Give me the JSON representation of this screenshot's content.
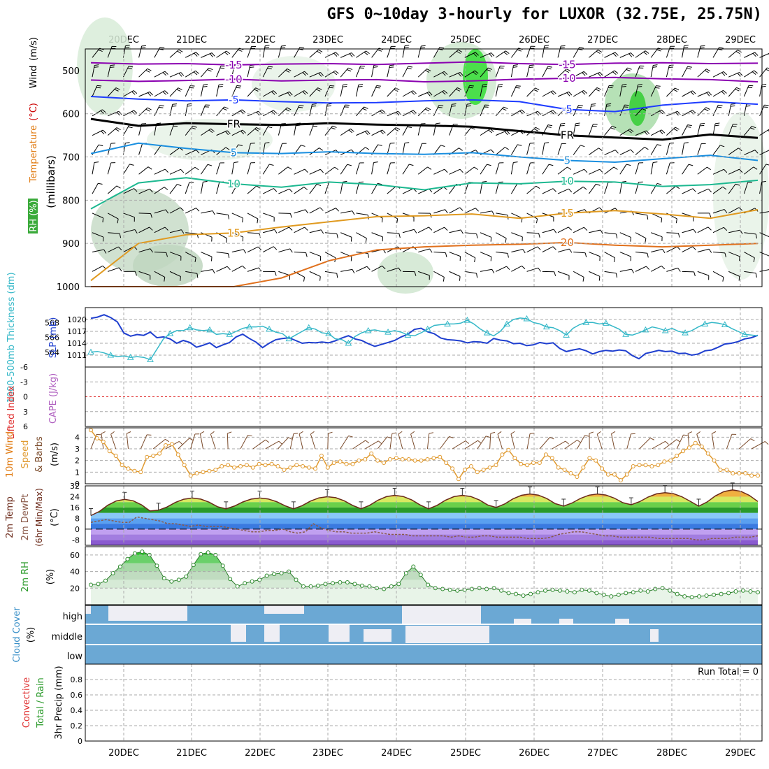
{
  "title": "GFS 0~10day 3-hourly for LUXOR (32.75E, 25.75N)",
  "chart_data": {
    "type": "meteogram",
    "days": [
      "20DEC",
      "21DEC",
      "22DEC",
      "23DEC",
      "24DEC",
      "25DEC",
      "26DEC",
      "27DEC",
      "28DEC",
      "29DEC"
    ],
    "panels": {
      "upper_air": {
        "ylabel_parts": [
          "RH (%)",
          "Temperature",
          "(°C)",
          "Wind",
          "(m/s)",
          "(millibars)"
        ],
        "yticks": [
          500,
          600,
          700,
          800,
          900,
          1000
        ],
        "ylim": [
          450,
          1000
        ],
        "contours": [
          {
            "label": "-15",
            "color": "#8a00b0",
            "p": [
              482,
              485,
              484,
              487,
              485,
              484,
              486,
              483,
              480,
              484,
              486,
              483,
              482,
              484,
              483
            ]
          },
          {
            "label": "-10",
            "color": "#8a00b0",
            "p": [
              522,
              525,
              523,
              520,
              524,
              522,
              521,
              526,
              524,
              520,
              518,
              516,
              519,
              521,
              526
            ]
          },
          {
            "label": "-5",
            "color": "#1e3cff",
            "p": [
              560,
              566,
              570,
              568,
              572,
              575,
              574,
              570,
              568,
              572,
              590,
              595,
              580,
              572,
              578
            ]
          },
          {
            "label": "FR",
            "color": "#000000",
            "p": [
              612,
              628,
              622,
              624,
              626,
              622,
              625,
              627,
              630,
              640,
              650,
              655,
              660,
              648,
              656
            ]
          },
          {
            "label": "5",
            "color": "#1a8fe0",
            "p": [
              692,
              668,
              680,
              690,
              692,
              688,
              692,
              694,
              690,
              700,
              708,
              712,
              704,
              696,
              708
            ]
          },
          {
            "label": "10",
            "color": "#1cb890",
            "p": [
              820,
              760,
              748,
              762,
              770,
              758,
              764,
              776,
              760,
              762,
              756,
              758,
              768,
              764,
              754
            ]
          },
          {
            "label": "15",
            "color": "#e09a20",
            "p": [
              986,
              900,
              880,
              876,
              862,
              850,
              838,
              836,
              832,
              842,
              830,
              824,
              832,
              842,
              822
            ]
          },
          {
            "label": "20",
            "color": "#e0701c",
            "p": [
              1000,
              1000,
              1000,
              1000,
              980,
              940,
              915,
              908,
              904,
              902,
              898,
              904,
              908,
              904,
              900
            ]
          }
        ]
      },
      "slp_thickness": {
        "slp_label": "SLP (mb)",
        "thickness_label": "1000-500mb Thickness (dm)",
        "slp_ticks": [
          "1020",
          "1017",
          "1014",
          "1011"
        ],
        "thickness_ticks": [
          "568",
          "566",
          "564"
        ],
        "slp": [
          1020.3,
          1020.6,
          1021.2,
          1020.5,
          1019.4,
          1016.6,
          1015.8,
          1016.2,
          1016.0,
          1016.8,
          1015.4,
          1015.6,
          1015.1,
          1014.0,
          1014.7,
          1014.2,
          1013.0,
          1013.5,
          1014.1,
          1012.9,
          1013.6,
          1014.2,
          1015.6,
          1016.3,
          1015.2,
          1014.3,
          1012.9,
          1014.0,
          1014.9,
          1015.2,
          1015.4,
          1014.7,
          1014.0,
          1014.2,
          1014.1,
          1014.3,
          1014.1,
          1014.6,
          1015.3,
          1015.9,
          1015.1,
          1014.7,
          1013.9,
          1013.2,
          1013.7,
          1014.2,
          1014.7,
          1015.6,
          1016.3,
          1017.5,
          1017.8,
          1016.9,
          1016.4,
          1015.3,
          1014.9,
          1014.8,
          1014.6,
          1014.1,
          1014.4,
          1014.3,
          1014.0,
          1015.2,
          1014.8,
          1014.6,
          1013.9,
          1014.0,
          1013.4,
          1013.6,
          1014.2,
          1013.9,
          1014.1,
          1012.7,
          1011.9,
          1012.3,
          1012.6,
          1012.1,
          1011.3,
          1011.9,
          1012.2,
          1012.0,
          1012.3,
          1012.1,
          1010.9,
          1010.1,
          1011.4,
          1011.8,
          1012.2,
          1011.9,
          1012.0,
          1011.4,
          1011.5,
          1011.0,
          1011.3,
          1012.1,
          1012.3,
          1013.0,
          1013.8,
          1014.0,
          1014.4,
          1015.1,
          1015.4,
          1016.0
        ],
        "thickness": [
          564.0,
          564.1,
          563.9,
          563.6,
          563.4,
          563.5,
          563.3,
          563.4,
          563.3,
          563.0,
          564.4,
          565.8,
          566.5,
          566.9,
          566.9,
          567.3,
          567.0,
          566.9,
          567.0,
          566.4,
          566.5,
          566.4,
          566.8,
          567.2,
          567.4,
          567.4,
          567.5,
          567.1,
          566.7,
          566.5,
          565.8,
          566.3,
          566.8,
          567.3,
          567.1,
          566.6,
          566.5,
          565.8,
          565.7,
          565.2,
          566.1,
          566.6,
          566.9,
          567.0,
          566.8,
          566.7,
          566.9,
          566.7,
          566.3,
          566.2,
          566.6,
          567.1,
          567.6,
          567.7,
          567.8,
          567.8,
          567.9,
          568.3,
          567.8,
          567.1,
          566.6,
          566.2,
          566.8,
          567.8,
          568.4,
          568.6,
          568.5,
          568.0,
          567.8,
          567.4,
          567.3,
          566.9,
          566.3,
          567.2,
          567.7,
          568.0,
          568.0,
          567.8,
          567.9,
          567.5,
          567.1,
          566.4,
          566.3,
          566.6,
          567.0,
          567.4,
          567.2,
          566.9,
          567.2,
          566.8,
          566.6,
          566.9,
          567.4,
          567.8,
          568.0,
          567.9,
          567.7,
          567.2,
          566.8,
          566.4,
          566.3,
          566.2
        ]
      },
      "li_cape": {
        "li_label": "Lifted Index",
        "cape_label": "CAPE (J/kg)",
        "li_ticks": [
          "-6",
          "-3",
          "0",
          "3",
          "6"
        ],
        "li": 0,
        "cape": 0
      },
      "wind10m": {
        "label_parts": [
          "10m Wind",
          "Speed",
          "& Barbs",
          "(m/s)"
        ],
        "yticks": [
          "4",
          "3",
          "2",
          "1",
          "0"
        ],
        "ylim": [
          0,
          4.8
        ],
        "speed": [
          4.6,
          3.9,
          3.6,
          2.8,
          2.4,
          1.6,
          1.3,
          1.1,
          1.0,
          2.3,
          2.4,
          2.6,
          3.3,
          3.4,
          2.5,
          1.6,
          0.7,
          0.9,
          1.0,
          1.1,
          1.2,
          1.5,
          1.6,
          1.4,
          1.5,
          1.6,
          1.4,
          1.7,
          1.6,
          1.7,
          1.5,
          1.2,
          1.4,
          1.6,
          1.5,
          1.4,
          1.3,
          2.4,
          1.4,
          1.8,
          1.9,
          1.7,
          1.7,
          2.0,
          2.1,
          2.6,
          2.0,
          1.8,
          2.1,
          2.2,
          2.1,
          2.1,
          2.0,
          2.0,
          2.1,
          2.2,
          2.3,
          1.8,
          1.3,
          0.4,
          1.2,
          1.5,
          1.0,
          1.2,
          1.4,
          1.6,
          2.5,
          2.9,
          2.2,
          1.7,
          1.6,
          1.8,
          1.8,
          2.5,
          2.2,
          1.4,
          1.2,
          0.9,
          0.6,
          1.4,
          2.2,
          2.0,
          1.3,
          0.8,
          0.8,
          0.3,
          0.8,
          1.5,
          1.6,
          1.6,
          1.5,
          1.6,
          1.9,
          2.0,
          2.4,
          2.8,
          3.1,
          3.5,
          3.2,
          2.6,
          2.0,
          1.2,
          1.2,
          0.9,
          0.9,
          0.9,
          0.7,
          0.7
        ]
      },
      "temp2m": {
        "label_parts": [
          "2m Temp",
          "2m DewPt",
          "(6hr Min/Max)",
          "(°C)"
        ],
        "yticks": [
          "32",
          "24",
          "16",
          "8",
          "0",
          "-8"
        ],
        "ylim": [
          -12,
          32
        ],
        "daily_min": [
          10,
          14,
          15,
          15,
          15,
          15,
          16,
          17,
          18,
          17
        ],
        "daily_max": [
          22,
          23,
          23,
          24,
          25,
          25,
          26,
          26,
          27,
          29
        ],
        "dewpt": [
          5,
          6,
          7,
          6,
          5,
          5,
          9,
          8,
          7,
          6,
          4,
          4,
          3,
          2,
          3,
          2,
          2,
          2,
          1,
          0,
          -1,
          -2,
          -2,
          -1,
          -1,
          0,
          -2,
          -3,
          -2,
          4,
          1,
          -1,
          -2,
          -2,
          -3,
          -3,
          -3,
          -2,
          -3,
          -4,
          -4,
          -4,
          -5,
          -5,
          -5,
          -5,
          -5,
          -6,
          -5,
          -6,
          -6,
          -5,
          -5,
          -6,
          -6,
          -6,
          -6,
          -7,
          -7,
          -7,
          -6,
          -4,
          -3,
          -2,
          -2,
          -3,
          -4,
          -5,
          -5,
          -6,
          -6,
          -6,
          -6,
          -6,
          -7,
          -7,
          -7,
          -7,
          -7,
          -8,
          -8,
          -7,
          -7,
          -7,
          -6,
          -6,
          -6,
          -5
        ]
      },
      "rh2m": {
        "label_parts": [
          "2m RH",
          "(%)"
        ],
        "yticks": [
          "60",
          "40",
          "20"
        ],
        "ylim": [
          0,
          70
        ],
        "rh": [
          24,
          25,
          29,
          38,
          46,
          55,
          62,
          64,
          60,
          47,
          32,
          28,
          30,
          34,
          48,
          61,
          63,
          60,
          47,
          31,
          22,
          26,
          28,
          30,
          35,
          37,
          38,
          40,
          30,
          22,
          22,
          23,
          25,
          26,
          27,
          27,
          25,
          23,
          22,
          20,
          19,
          22,
          25,
          38,
          46,
          36,
          24,
          20,
          19,
          18,
          17,
          18,
          19,
          20,
          19,
          20,
          17,
          14,
          13,
          11,
          13,
          15,
          17,
          18,
          17,
          16,
          15,
          18,
          17,
          14,
          12,
          10,
          12,
          14,
          15,
          17,
          16,
          19,
          20,
          17,
          13,
          10,
          9,
          10,
          11,
          12,
          13,
          14,
          16,
          17,
          16,
          15
        ]
      },
      "cloud": {
        "label_parts": [
          "Cloud Cover",
          "(%)"
        ],
        "levels": [
          "high",
          "middle",
          "low"
        ]
      },
      "precip": {
        "label_parts": [
          "3hr Precip (mm)",
          "Total / Rain",
          "Convective"
        ],
        "yticks": [
          "0.8",
          "0.6",
          "0.4",
          "0.2",
          "0"
        ],
        "ylim": [
          0,
          1
        ],
        "run_total_label": "Run Total = 0",
        "values": []
      }
    }
  }
}
